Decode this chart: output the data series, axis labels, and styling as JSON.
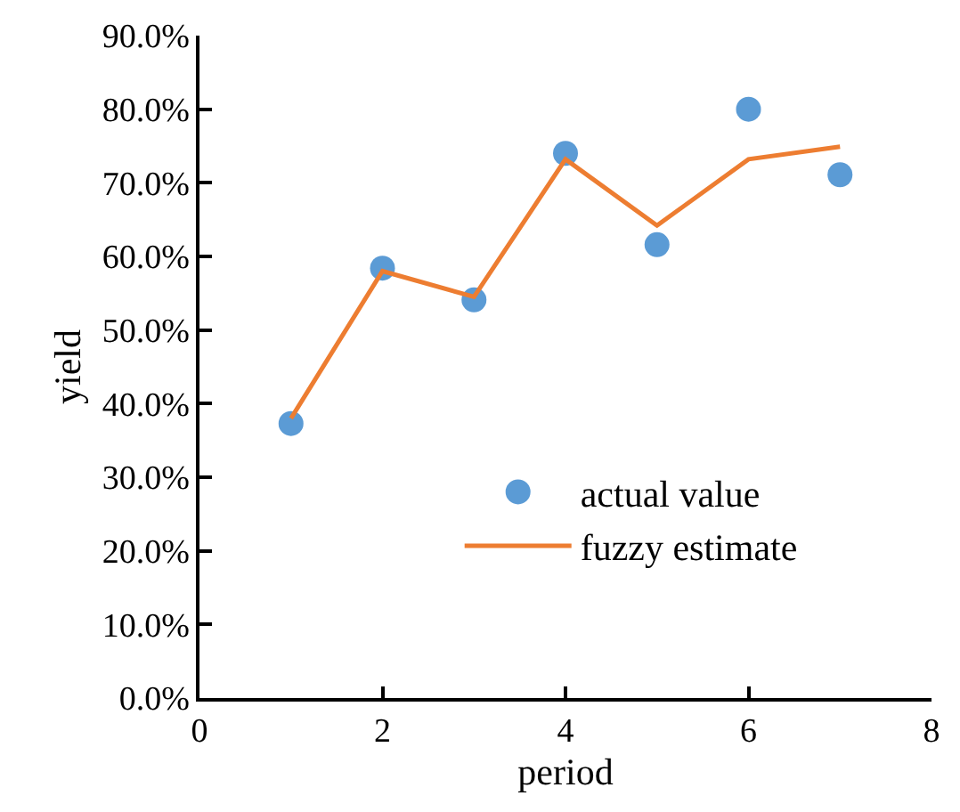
{
  "chart_data": {
    "type": "scatter",
    "xlabel": "period",
    "ylabel": "yield",
    "x": [
      1,
      2,
      3,
      4,
      5,
      6,
      7
    ],
    "series": [
      {
        "name": "actual value",
        "color": "#5b9bd5",
        "marker": "circle",
        "values": [
          37.3,
          58.4,
          54.1,
          74.0,
          61.6,
          80.0,
          71.1
        ]
      },
      {
        "name": "fuzzy estimate",
        "type": "line",
        "color": "#ed7d31",
        "marker": "none",
        "line_style": "solid",
        "values": [
          38.0,
          58.0,
          54.5,
          73.2,
          64.2,
          73.2,
          74.9
        ]
      }
    ],
    "xlim": [
      0,
      8
    ],
    "xticks": [
      0,
      2,
      4,
      6,
      8
    ],
    "ylim": [
      0,
      90
    ],
    "yticks": [
      {
        "value": 0,
        "label": "0.0%"
      },
      {
        "value": 10,
        "label": "10.0%"
      },
      {
        "value": 20,
        "label": "20.0%"
      },
      {
        "value": 30,
        "label": "30.0%"
      },
      {
        "value": 40,
        "label": "40.0%"
      },
      {
        "value": 50,
        "label": "50.0%"
      },
      {
        "value": 60,
        "label": "60.0%"
      },
      {
        "value": 70,
        "label": "70.0%"
      },
      {
        "value": 80,
        "label": "80.0%"
      },
      {
        "value": 90,
        "label": "90.0%"
      }
    ],
    "legend": "right"
  }
}
